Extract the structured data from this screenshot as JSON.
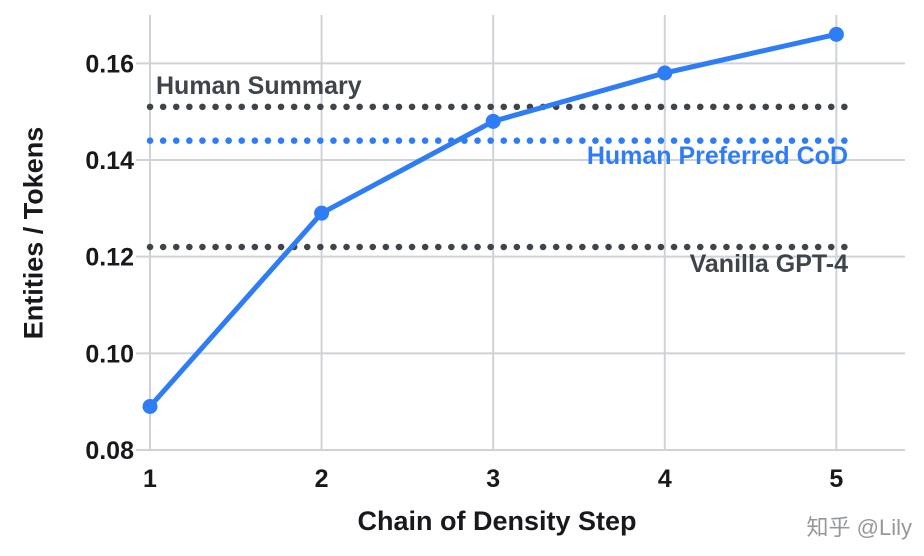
{
  "watermark": "知乎 @Lily",
  "colors": {
    "series": "#2e7df6",
    "reference_dark": "#3e444a",
    "reference_blue": "#2e7df6",
    "grid": "#cfd3d7",
    "text": "#17191c",
    "watermark": "#94989c",
    "background": "#ffffff"
  },
  "chart_data": {
    "type": "line",
    "x": [
      1,
      2,
      3,
      4,
      5
    ],
    "values": [
      0.089,
      0.129,
      0.148,
      0.158,
      0.166
    ],
    "reference_lines": [
      {
        "label": "Human Summary",
        "value": 0.151,
        "color": "#3e444a",
        "style": "dotted"
      },
      {
        "label": "Human Preferred CoD",
        "value": 0.144,
        "color": "#2e7df6",
        "style": "dotted"
      },
      {
        "label": "Vanilla GPT-4",
        "value": 0.122,
        "color": "#3e444a",
        "style": "dotted"
      }
    ],
    "xlabel": "Chain of Density Step",
    "ylabel": "Entities / Tokens",
    "xticks": [
      1,
      2,
      3,
      4,
      5
    ],
    "yticks": [
      0.08,
      0.1,
      0.12,
      0.14,
      0.16
    ],
    "xlim": [
      1,
      5.4
    ],
    "ylim": [
      0.08,
      0.17
    ],
    "grid": true,
    "legend_position": "none"
  }
}
